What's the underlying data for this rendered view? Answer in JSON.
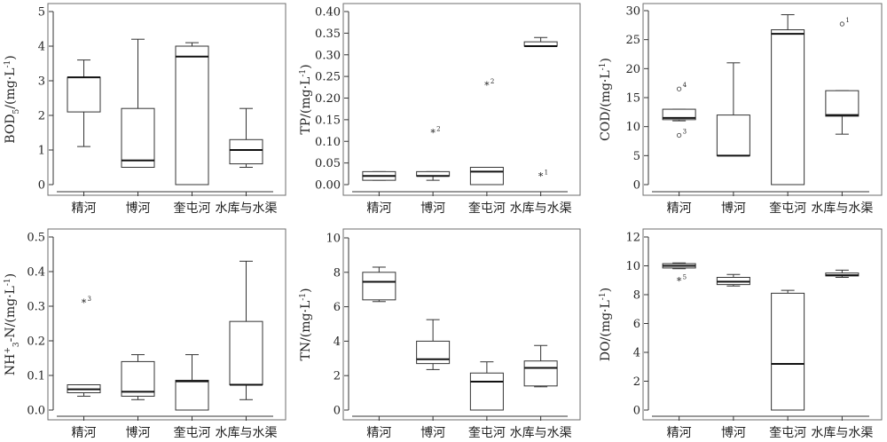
{
  "chart_data": [
    {
      "type": "box",
      "ylabel": "BOD5/(mg·L-1)",
      "ylabel_parts": [
        "BOD",
        "5",
        "/(mg·L",
        "-1",
        ")"
      ],
      "ylim": [
        0,
        5
      ],
      "yticks": [
        0,
        1,
        2,
        3,
        4,
        5
      ],
      "categories": [
        "精河",
        "博河",
        "奎屯河",
        "水库与水渠"
      ],
      "boxes": [
        {
          "min": 1.1,
          "q1": 2.1,
          "median": 3.1,
          "q3": 3.1,
          "max": 3.6,
          "outliers": []
        },
        {
          "min": 0.5,
          "q1": 0.5,
          "median": 0.7,
          "q3": 2.2,
          "max": 4.2,
          "outliers": []
        },
        {
          "min": 0.0,
          "q1": 0.0,
          "median": 3.7,
          "q3": 4.0,
          "max": 4.1,
          "outliers": []
        },
        {
          "min": 0.5,
          "q1": 0.6,
          "median": 1.0,
          "q3": 1.3,
          "max": 2.2,
          "outliers": []
        }
      ]
    },
    {
      "type": "box",
      "ylabel": "TP/(mg·L-1)",
      "ylabel_parts": [
        "TP/(mg·L",
        "-1",
        ")"
      ],
      "ylim": [
        0,
        0.4
      ],
      "yticks": [
        0.0,
        0.05,
        0.1,
        0.15,
        0.2,
        0.25,
        0.3,
        0.35,
        0.4
      ],
      "categories": [
        "精河",
        "博河",
        "奎屯河",
        "水库与水渠"
      ],
      "boxes": [
        {
          "min": 0.01,
          "q1": 0.01,
          "median": 0.02,
          "q3": 0.03,
          "max": 0.03,
          "outliers": []
        },
        {
          "min": 0.01,
          "q1": 0.02,
          "median": 0.02,
          "q3": 0.03,
          "max": 0.03,
          "outliers": [
            {
              "value": 0.12,
              "label": "2",
              "marker": "*"
            }
          ]
        },
        {
          "min": 0.0,
          "q1": 0.0,
          "median": 0.03,
          "q3": 0.04,
          "max": 0.04,
          "outliers": [
            {
              "value": 0.23,
              "label": "2",
              "marker": "*"
            }
          ]
        },
        {
          "min": 0.32,
          "q1": 0.32,
          "median": 0.32,
          "q3": 0.33,
          "max": 0.34,
          "outliers": [
            {
              "value": 0.02,
              "label": "1",
              "marker": "*"
            }
          ]
        }
      ]
    },
    {
      "type": "box",
      "ylabel": "COD/(mg·L-1)",
      "ylabel_parts": [
        "COD/(mg·L",
        "-1",
        ")"
      ],
      "ylim": [
        0,
        30
      ],
      "yticks": [
        0,
        5,
        10,
        15,
        20,
        25,
        30
      ],
      "categories": [
        "精河",
        "博河",
        "奎屯河",
        "水库与水渠"
      ],
      "boxes": [
        {
          "min": 11.0,
          "q1": 11.2,
          "median": 11.5,
          "q3": 13.0,
          "max": 13.0,
          "outliers": [
            {
              "value": 16.5,
              "label": "4",
              "marker": "o"
            },
            {
              "value": 8.5,
              "label": "3",
              "marker": "o"
            }
          ]
        },
        {
          "min": 5.0,
          "q1": 5.0,
          "median": 5.0,
          "q3": 12.0,
          "max": 21.0,
          "outliers": []
        },
        {
          "min": 0.0,
          "q1": 0.0,
          "median": 26.0,
          "q3": 26.7,
          "max": 29.3,
          "outliers": []
        },
        {
          "min": 8.7,
          "q1": 11.8,
          "median": 12.0,
          "q3": 16.2,
          "max": 16.2,
          "outliers": [
            {
              "value": 27.7,
              "label": "1",
              "marker": "o"
            }
          ]
        }
      ]
    },
    {
      "type": "box",
      "ylabel": "NH+3-N/(mg·L-1)",
      "ylabel_parts": [
        "NH",
        "+",
        "3",
        "-N/(mg·L",
        "-1",
        ")"
      ],
      "ylim": [
        0,
        0.5
      ],
      "yticks": [
        0.0,
        0.1,
        0.2,
        0.3,
        0.4,
        0.5
      ],
      "categories": [
        "精河",
        "博河",
        "奎屯河",
        "水库与水渠"
      ],
      "boxes": [
        {
          "min": 0.04,
          "q1": 0.05,
          "median": 0.06,
          "q3": 0.073,
          "max": 0.073,
          "outliers": [
            {
              "value": 0.31,
              "label": "3",
              "marker": "*"
            }
          ]
        },
        {
          "min": 0.03,
          "q1": 0.04,
          "median": 0.053,
          "q3": 0.14,
          "max": 0.16,
          "outliers": []
        },
        {
          "min": 0.0,
          "q1": 0.0,
          "median": 0.083,
          "q3": 0.086,
          "max": 0.16,
          "outliers": []
        },
        {
          "min": 0.03,
          "q1": 0.073,
          "median": 0.073,
          "q3": 0.256,
          "max": 0.43,
          "outliers": []
        }
      ]
    },
    {
      "type": "box",
      "ylabel": "TN/(mg·L-1)",
      "ylabel_parts": [
        "TN/(mg·L",
        "-1",
        ")"
      ],
      "ylim": [
        0,
        10
      ],
      "yticks": [
        0,
        2,
        4,
        6,
        8,
        10
      ],
      "categories": [
        "精河",
        "博河",
        "奎屯河",
        "水库与水渠"
      ],
      "boxes": [
        {
          "min": 6.3,
          "q1": 6.4,
          "median": 7.45,
          "q3": 8.0,
          "max": 8.3,
          "outliers": []
        },
        {
          "min": 2.35,
          "q1": 2.7,
          "median": 2.95,
          "q3": 4.0,
          "max": 5.25,
          "outliers": []
        },
        {
          "min": 0.0,
          "q1": 0.0,
          "median": 1.65,
          "q3": 2.15,
          "max": 2.8,
          "outliers": []
        },
        {
          "min": 1.35,
          "q1": 1.4,
          "median": 2.45,
          "q3": 2.85,
          "max": 3.75,
          "outliers": []
        }
      ]
    },
    {
      "type": "box",
      "ylabel": "DO/(mg·L-1)",
      "ylabel_parts": [
        "DO/(mg·L",
        "-1",
        ")"
      ],
      "ylim": [
        0,
        12
      ],
      "yticks": [
        0,
        2,
        4,
        6,
        8,
        10,
        12
      ],
      "categories": [
        "精河",
        "博河",
        "奎屯河",
        "水库与水渠"
      ],
      "boxes": [
        {
          "min": 9.8,
          "q1": 9.85,
          "median": 10.0,
          "q3": 10.15,
          "max": 10.2,
          "outliers": [
            {
              "value": 8.95,
              "label": "5",
              "marker": "*"
            }
          ]
        },
        {
          "min": 8.6,
          "q1": 8.7,
          "median": 8.9,
          "q3": 9.2,
          "max": 9.4,
          "outliers": []
        },
        {
          "min": 0.0,
          "q1": 0.0,
          "median": 3.2,
          "q3": 8.1,
          "max": 8.3,
          "outliers": []
        },
        {
          "min": 9.2,
          "q1": 9.3,
          "median": 9.35,
          "q3": 9.5,
          "max": 9.7,
          "outliers": []
        }
      ]
    }
  ]
}
